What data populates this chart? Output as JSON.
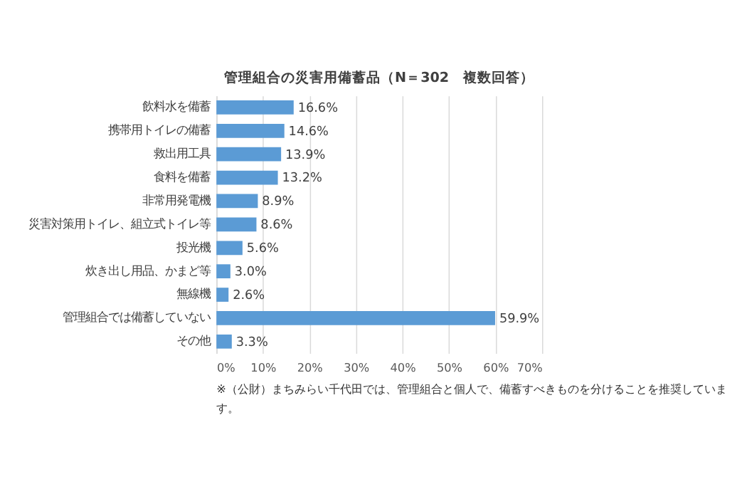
{
  "chart_data": {
    "type": "bar",
    "orientation": "horizontal",
    "title": "管理組合の災害用備蓄品（N＝302　複数回答）",
    "categories": [
      "飲料水を備蓄",
      "携帯用トイレの備蓄",
      "救出用工具",
      "食料を備蓄",
      "非常用発電機",
      "災害対策用トイレ、組立式トイレ等",
      "投光機",
      "炊き出し用品、かまど等",
      "無線機",
      "管理組合では備蓄していない",
      "その他"
    ],
    "values": [
      16.6,
      14.6,
      13.9,
      13.2,
      8.9,
      8.6,
      5.6,
      3.0,
      2.6,
      59.9,
      3.3
    ],
    "value_labels": [
      "16.6%",
      "14.6%",
      "13.9%",
      "13.2%",
      "8.9%",
      "8.6%",
      "5.6%",
      "3.0%",
      "2.6%",
      "59.9%",
      "3.3%"
    ],
    "color": "#5b9bd5",
    "xlim": [
      0,
      70
    ],
    "xticks": [
      {
        "value": 0,
        "label": "0%"
      },
      {
        "value": 10,
        "label": "10%"
      },
      {
        "value": 20,
        "label": "20%"
      },
      {
        "value": 30,
        "label": "30%"
      },
      {
        "value": 40,
        "label": "40%"
      },
      {
        "value": 50,
        "label": "50%"
      },
      {
        "value": 60,
        "label": "60%"
      },
      {
        "value": 70,
        "label": "70%"
      }
    ],
    "grid": "x",
    "annotations": [
      "※（公財）まちみらい千代田では、管理組合と個人で、備蓄すべきものを分けることを推奨しています。"
    ]
  }
}
